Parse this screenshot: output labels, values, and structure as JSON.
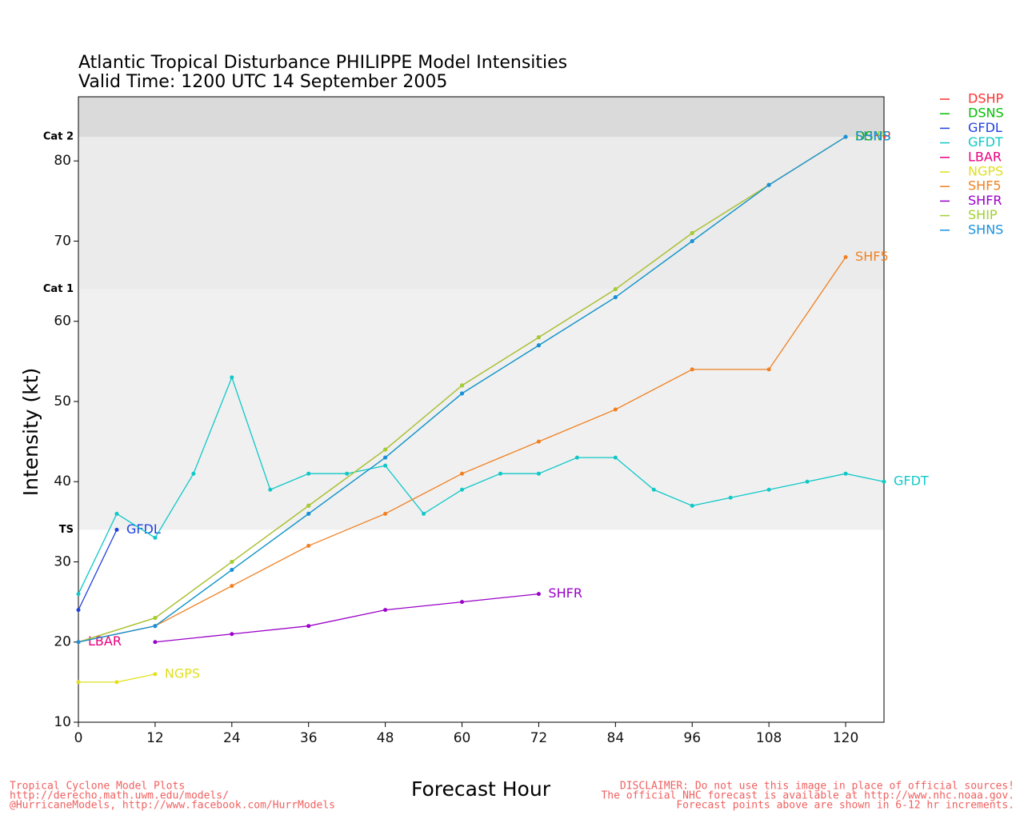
{
  "chart_data": {
    "type": "line",
    "title": "Atlantic Tropical Disturbance PHILIPPE Model Intensities",
    "subtitle": "Valid Time: 1200 UTC 14 September 2005",
    "x_label": "Forecast Hour",
    "y_label": "Intensity (kt)",
    "xlim": [
      0,
      126
    ],
    "xticks": [
      0,
      12,
      24,
      36,
      48,
      60,
      72,
      84,
      96,
      108,
      120
    ],
    "ylim": [
      10,
      88
    ],
    "yticks": [
      10,
      20,
      30,
      40,
      50,
      60,
      70,
      80
    ],
    "thresholds": [
      {
        "label": "TS",
        "value": 34
      },
      {
        "label": "Cat 1",
        "value": 64
      },
      {
        "label": "Cat 2",
        "value": 83
      }
    ],
    "legend": "right",
    "series": [
      {
        "name": "DSHP",
        "color": "#ff3030",
        "x": [
          0,
          12,
          24,
          36,
          48,
          60,
          72,
          84,
          96,
          108,
          120
        ],
        "values": [
          20,
          23,
          30,
          37,
          44,
          52,
          58,
          64,
          71,
          77,
          83
        ]
      },
      {
        "name": "DSNS",
        "color": "#00c000",
        "x": [
          0,
          12,
          24,
          36,
          48,
          60,
          72,
          84,
          96,
          108,
          120
        ],
        "values": [
          20,
          22,
          29,
          36,
          43,
          51,
          57,
          63,
          70,
          77,
          83
        ]
      },
      {
        "name": "GFDL",
        "color": "#2040e0",
        "x": [
          0,
          6
        ],
        "values": [
          24,
          34
        ]
      },
      {
        "name": "GFDT",
        "color": "#10c8c8",
        "x": [
          0,
          6,
          12,
          18,
          24,
          30,
          36,
          42,
          48,
          54,
          60,
          66,
          72,
          78,
          84,
          90,
          96,
          102,
          108,
          114,
          120,
          126
        ],
        "values": [
          26,
          36,
          33,
          41,
          53,
          39,
          41,
          41,
          42,
          36,
          39,
          41,
          41,
          43,
          43,
          39,
          37,
          38,
          39,
          40,
          41,
          40
        ]
      },
      {
        "name": "LBAR",
        "color": "#e8007f",
        "x": [
          0
        ],
        "values": [
          20
        ]
      },
      {
        "name": "NGPS",
        "color": "#e0e020",
        "x": [
          0,
          6,
          12
        ],
        "values": [
          15,
          15,
          16
        ]
      },
      {
        "name": "SHF5",
        "color": "#f08020",
        "x": [
          0,
          12,
          24,
          36,
          48,
          60,
          72,
          84,
          96,
          108,
          120
        ],
        "values": [
          20,
          22,
          27,
          32,
          36,
          41,
          45,
          49,
          54,
          54,
          68
        ]
      },
      {
        "name": "SHFR",
        "color": "#9a00c8",
        "x": [
          12,
          24,
          36,
          48,
          60,
          72
        ],
        "values": [
          20,
          21,
          22,
          24,
          25,
          26
        ]
      },
      {
        "name": "SHIP",
        "color": "#a0d030",
        "x": [
          0,
          12,
          24,
          36,
          48,
          60,
          72,
          84,
          96,
          108,
          120
        ],
        "values": [
          20,
          23,
          30,
          37,
          44,
          52,
          58,
          64,
          71,
          77,
          83
        ]
      },
      {
        "name": "SHNS",
        "color": "#1890e0",
        "x": [
          0,
          12,
          24,
          36,
          48,
          60,
          72,
          84,
          96,
          108,
          120
        ],
        "values": [
          20,
          22,
          29,
          36,
          43,
          51,
          57,
          63,
          70,
          77,
          83
        ]
      }
    ]
  },
  "footer": {
    "left": [
      "Tropical Cyclone Model Plots",
      "http://derecho.math.uwm.edu/models/",
      "@HurricaneModels, http://www.facebook.com/HurrModels"
    ],
    "right": [
      "DISCLAIMER: Do not use this image in place of official sources!",
      "The official NHC forecast is available at http://www.nhc.noaa.gov.",
      "Forecast points above are shown in 6-12 hr increments."
    ]
  }
}
